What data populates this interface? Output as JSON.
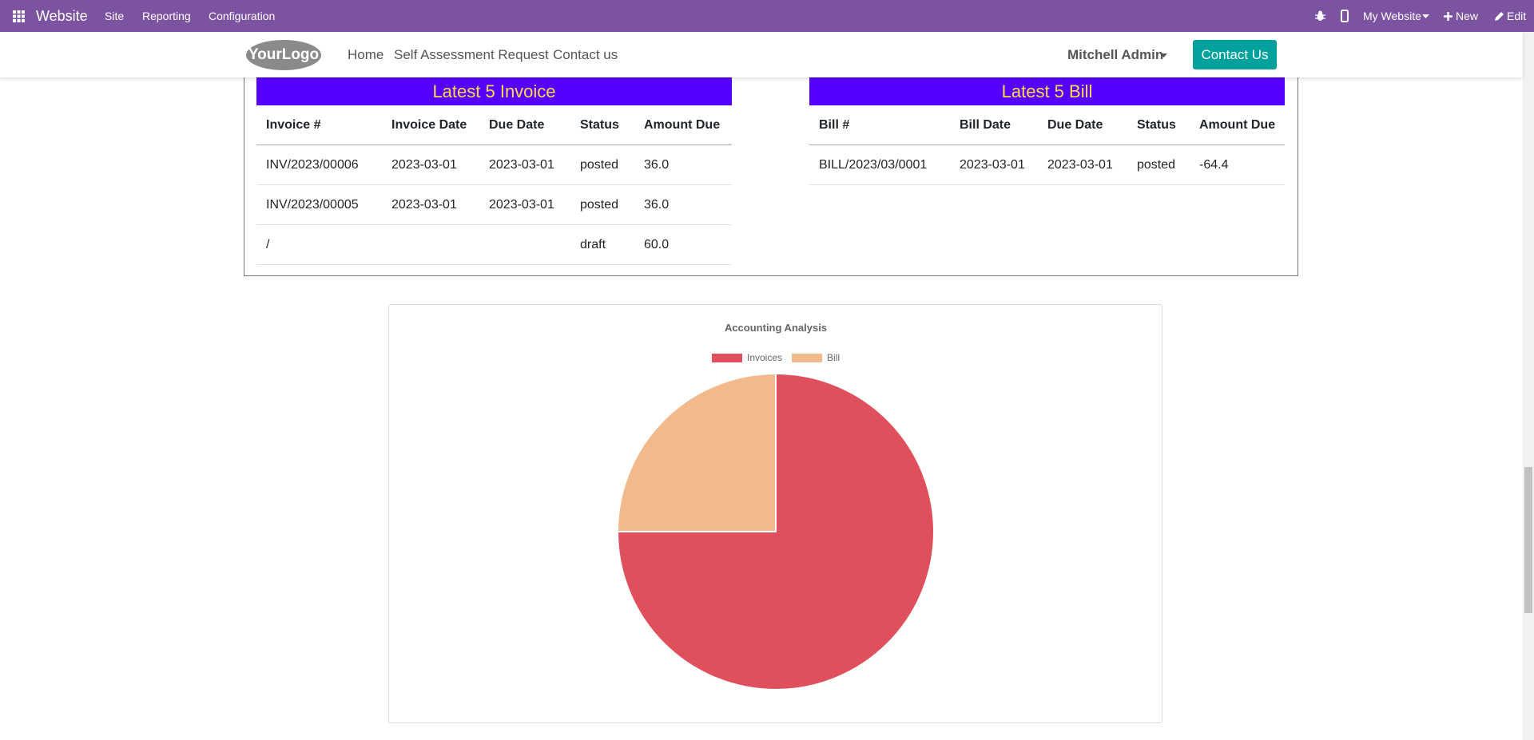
{
  "topbar": {
    "app": "Website",
    "menu": [
      "Site",
      "Reporting",
      "Configuration"
    ],
    "website": "My Website",
    "new": "New",
    "edit": "Edit"
  },
  "header": {
    "logo": "YourLogo",
    "nav": [
      "Home",
      "Self Assessment Request",
      "Contact us"
    ],
    "user": "Mitchell Admin",
    "button": "Contact Us"
  },
  "invoices": {
    "title": "Latest 5 Invoice",
    "columns": [
      "Invoice #",
      "Invoice Date",
      "Due Date",
      "Status",
      "Amount Due"
    ],
    "rows": [
      [
        "INV/2023/00006",
        "2023-03-01",
        "2023-03-01",
        "posted",
        "36.0"
      ],
      [
        "INV/2023/00005",
        "2023-03-01",
        "2023-03-01",
        "posted",
        "36.0"
      ],
      [
        "/",
        null,
        null,
        "draft",
        "60.0"
      ]
    ]
  },
  "bills": {
    "title": "Latest 5 Bill",
    "columns": [
      "Bill #",
      "Bill Date",
      "Due Date",
      "Status",
      "Amount Due"
    ],
    "rows": [
      [
        "BILL/2023/03/0001",
        "2023-03-01",
        "2023-03-01",
        "posted",
        "-64.4"
      ]
    ]
  },
  "chart_data": {
    "type": "pie",
    "title": "Accounting Analysis",
    "categories": [
      "Invoices",
      "Bill"
    ],
    "values": [
      75,
      25
    ],
    "colors": [
      "#e0505c",
      "#f2b98c"
    ]
  }
}
